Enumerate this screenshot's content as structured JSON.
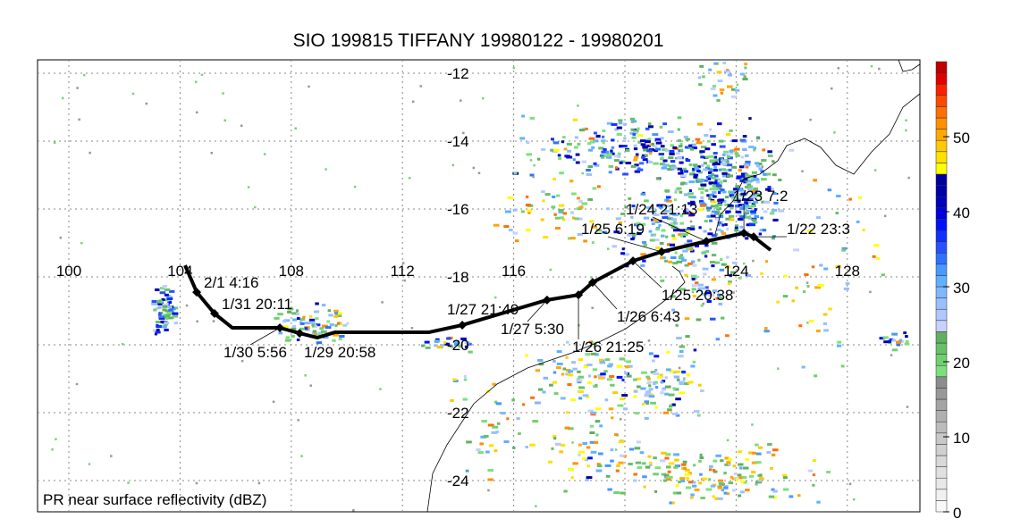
{
  "title": "SIO 199815 TIFFANY 19980122 - 19980201",
  "field_label": "PR near surface reflectivity (dBZ)",
  "map": {
    "lon_ticks": [
      "100",
      "104",
      "108",
      "112",
      "116",
      "124",
      "128"
    ],
    "lon_values": [
      100,
      104,
      108,
      112,
      116,
      124,
      128
    ],
    "lat_ticks": [
      "-12",
      "-14",
      "-16",
      "-18",
      "-20",
      "-22",
      "-24"
    ],
    "lat_values": [
      -12,
      -14,
      -16,
      -18,
      -20,
      -22,
      -24
    ]
  },
  "track": {
    "color": "#000000",
    "points": [
      {
        "lon": 104.18,
        "lat": -17.66,
        "label": null
      },
      {
        "lon": 104.6,
        "lat": -18.45,
        "label": "2/1 4:16"
      },
      {
        "lon": 105.24,
        "lat": -19.08,
        "label": "1/31 20:11"
      },
      {
        "lon": 105.88,
        "lat": -19.5,
        "label": null
      },
      {
        "lon": 107.59,
        "lat": -19.5,
        "label": "1/30 5:56"
      },
      {
        "lon": 108.3,
        "lat": -19.66,
        "label": "1/29 20:58"
      },
      {
        "lon": 108.94,
        "lat": -19.79,
        "label": null
      },
      {
        "lon": 109.58,
        "lat": -19.63,
        "label": null
      },
      {
        "lon": 112.96,
        "lat": -19.63,
        "label": null
      },
      {
        "lon": 114.15,
        "lat": -19.42,
        "label": "1/27 21:49"
      },
      {
        "lon": 117.2,
        "lat": -18.68,
        "label": "1/27 5:30"
      },
      {
        "lon": 118.33,
        "lat": -18.53,
        "label": "1/26 21:25"
      },
      {
        "lon": 118.84,
        "lat": -18.16,
        "label": "1/26 6:43"
      },
      {
        "lon": 120.29,
        "lat": -17.53,
        "label": "1/25 20:38"
      },
      {
        "lon": 121.32,
        "lat": -17.26,
        "label": "1/25 6:19"
      },
      {
        "lon": 122.93,
        "lat": -16.95,
        "label": "1/24 21:13"
      },
      {
        "lon": 124.28,
        "lat": -16.71,
        "label": "1/23 7:2"
      },
      {
        "lon": 124.63,
        "lat": -16.82,
        "label": "1/22 23:3"
      },
      {
        "lon": 125.24,
        "lat": -17.21,
        "label": null
      }
    ]
  },
  "colorbar": {
    "ticks": [
      "0",
      "10",
      "20",
      "30",
      "40",
      "50"
    ],
    "tick_values": [
      0,
      10,
      20,
      30,
      40,
      50
    ],
    "min": 0,
    "max": 60,
    "step": 1.5,
    "colors": [
      "#f8f8f8",
      "#f0f0f0",
      "#e8e8e8",
      "#e0e0e0",
      "#d8d8d8",
      "#d0d0d0",
      "#c8c8c8",
      "#bcbcbc",
      "#b0b0b0",
      "#a4a4a4",
      "#989898",
      "#8c8c8c",
      "#7ce07c",
      "#70d070",
      "#68c068",
      "#60b060",
      "#c8d0ff",
      "#b0c8ff",
      "#98c0ff",
      "#80b8ff",
      "#60b0ff",
      "#4898ff",
      "#3070ff",
      "#2850ff",
      "#1030ff",
      "#0010ff",
      "#0000e0",
      "#0000c0",
      "#0000a8",
      "#0000a0",
      "#ffff00",
      "#ffe000",
      "#ffc800",
      "#ffa800",
      "#ff9000",
      "#ff7000",
      "#ff4800",
      "#ff2000",
      "#e00000",
      "#c00000"
    ]
  }
}
